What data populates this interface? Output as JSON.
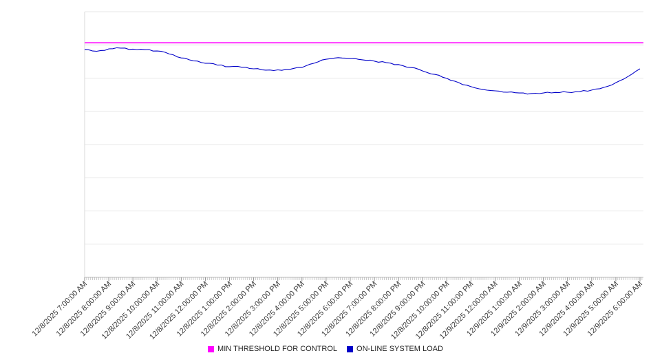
{
  "chart_data": {
    "type": "line",
    "title": "",
    "x_labels": [
      "12/8/2025 7:00:00 AM",
      "12/8/2025 8:00:00 AM",
      "12/8/2025 9:00:00 AM",
      "12/8/2025 10:00:00 AM",
      "12/8/2025 11:00:00 AM",
      "12/8/2025 12:00:00 PM",
      "12/8/2025 1:00:00 PM",
      "12/8/2025 2:00:00 PM",
      "12/8/2025 3:00:00 PM",
      "12/8/2025 4:00:00 PM",
      "12/8/2025 5:00:00 PM",
      "12/8/2025 6:00:00 PM",
      "12/8/2025 7:00:00 PM",
      "12/8/2025 8:00:00 PM",
      "12/8/2025 9:00:00 PM",
      "12/8/2025 10:00:00 PM",
      "12/8/2025 11:00:00 PM",
      "12/9/2025 12:00:00 AM",
      "12/9/2025 1:00:00 AM",
      "12/9/2025 2:00:00 AM",
      "12/9/2025 3:00:00 AM",
      "12/9/2025 4:00:00 AM",
      "12/9/2025 5:00:00 AM",
      "12/9/2025 6:00:00 AM"
    ],
    "x_tick_interval": "1 hour",
    "ylim": [
      0,
      100
    ],
    "y_axis_labels_visible": false,
    "grid": "horizontal",
    "legend_position": "bottom-center",
    "series": [
      {
        "name": "MIN THRESHOLD FOR CONTROL",
        "color": "#ff00ff",
        "style": "threshold",
        "value": 88.3
      },
      {
        "name": "ON-LINE SYSTEM LOAD",
        "color": "#0000c8",
        "style": "line",
        "x_interval_minutes": 30,
        "values": [
          85.8,
          85.1,
          86.0,
          86.3,
          85.9,
          85.7,
          85.2,
          84.1,
          82.6,
          81.5,
          80.6,
          79.9,
          79.3,
          79.1,
          78.5,
          78.0,
          78.1,
          78.3,
          79.0,
          80.6,
          82.1,
          82.7,
          82.4,
          81.9,
          81.4,
          80.8,
          80.1,
          79.0,
          77.7,
          76.4,
          74.9,
          73.3,
          71.8,
          70.7,
          70.2,
          69.7,
          69.4,
          69.2,
          69.4,
          69.6,
          69.7,
          69.9,
          70.5,
          71.5,
          73.3,
          75.6,
          78.5
        ]
      }
    ]
  }
}
